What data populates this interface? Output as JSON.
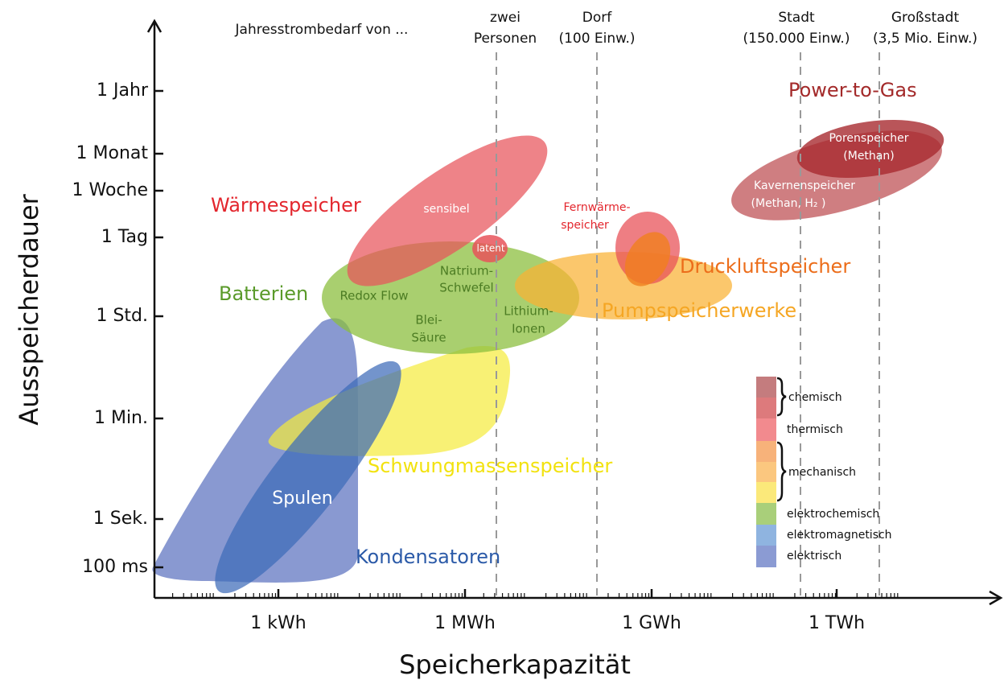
{
  "x_axis": {
    "title": "Speicherkapazität",
    "ticks": [
      "1 kWh",
      "1 MWh",
      "1 GWh",
      "1 TWh"
    ]
  },
  "y_axis": {
    "title": "Ausspeicherdauer",
    "ticks": [
      "1 Jahr",
      "1 Monat",
      "1 Woche",
      "1 Tag",
      "1 Std.",
      "1 Min.",
      "1 Sek.",
      "100 ms"
    ]
  },
  "header": "Jahresstrombedarf von ...",
  "references": [
    [
      "zwei",
      "Personen"
    ],
    [
      "Dorf",
      "(100 Einw.)"
    ],
    [
      "Stadt",
      "(150.000 Einw.)"
    ],
    [
      "Großstadt",
      "(3,5 Mio. Einw.)"
    ]
  ],
  "labels": [
    "Wärmespeicher",
    "sensibel",
    "latent",
    "Batterien",
    "Redox Flow",
    "Natrium-",
    "Schwefel",
    "Blei-",
    "Säure",
    "Lithium-",
    "Ionen",
    "Fernwärme-",
    "speicher",
    "Druckluftspeicher",
    "Pumpspeicherwerke",
    "Power-to-Gas",
    "Porenspeicher",
    "(Methan)",
    "Kavernenspeicher",
    "(Methan, H₂ )",
    "Schwungmassenspeicher",
    "Spulen",
    "Kondensatoren"
  ],
  "legend": [
    "chemisch",
    "thermisch",
    "mechanisch",
    "elektrochemisch",
    "elektromagnetisch",
    "elektrisch"
  ]
}
